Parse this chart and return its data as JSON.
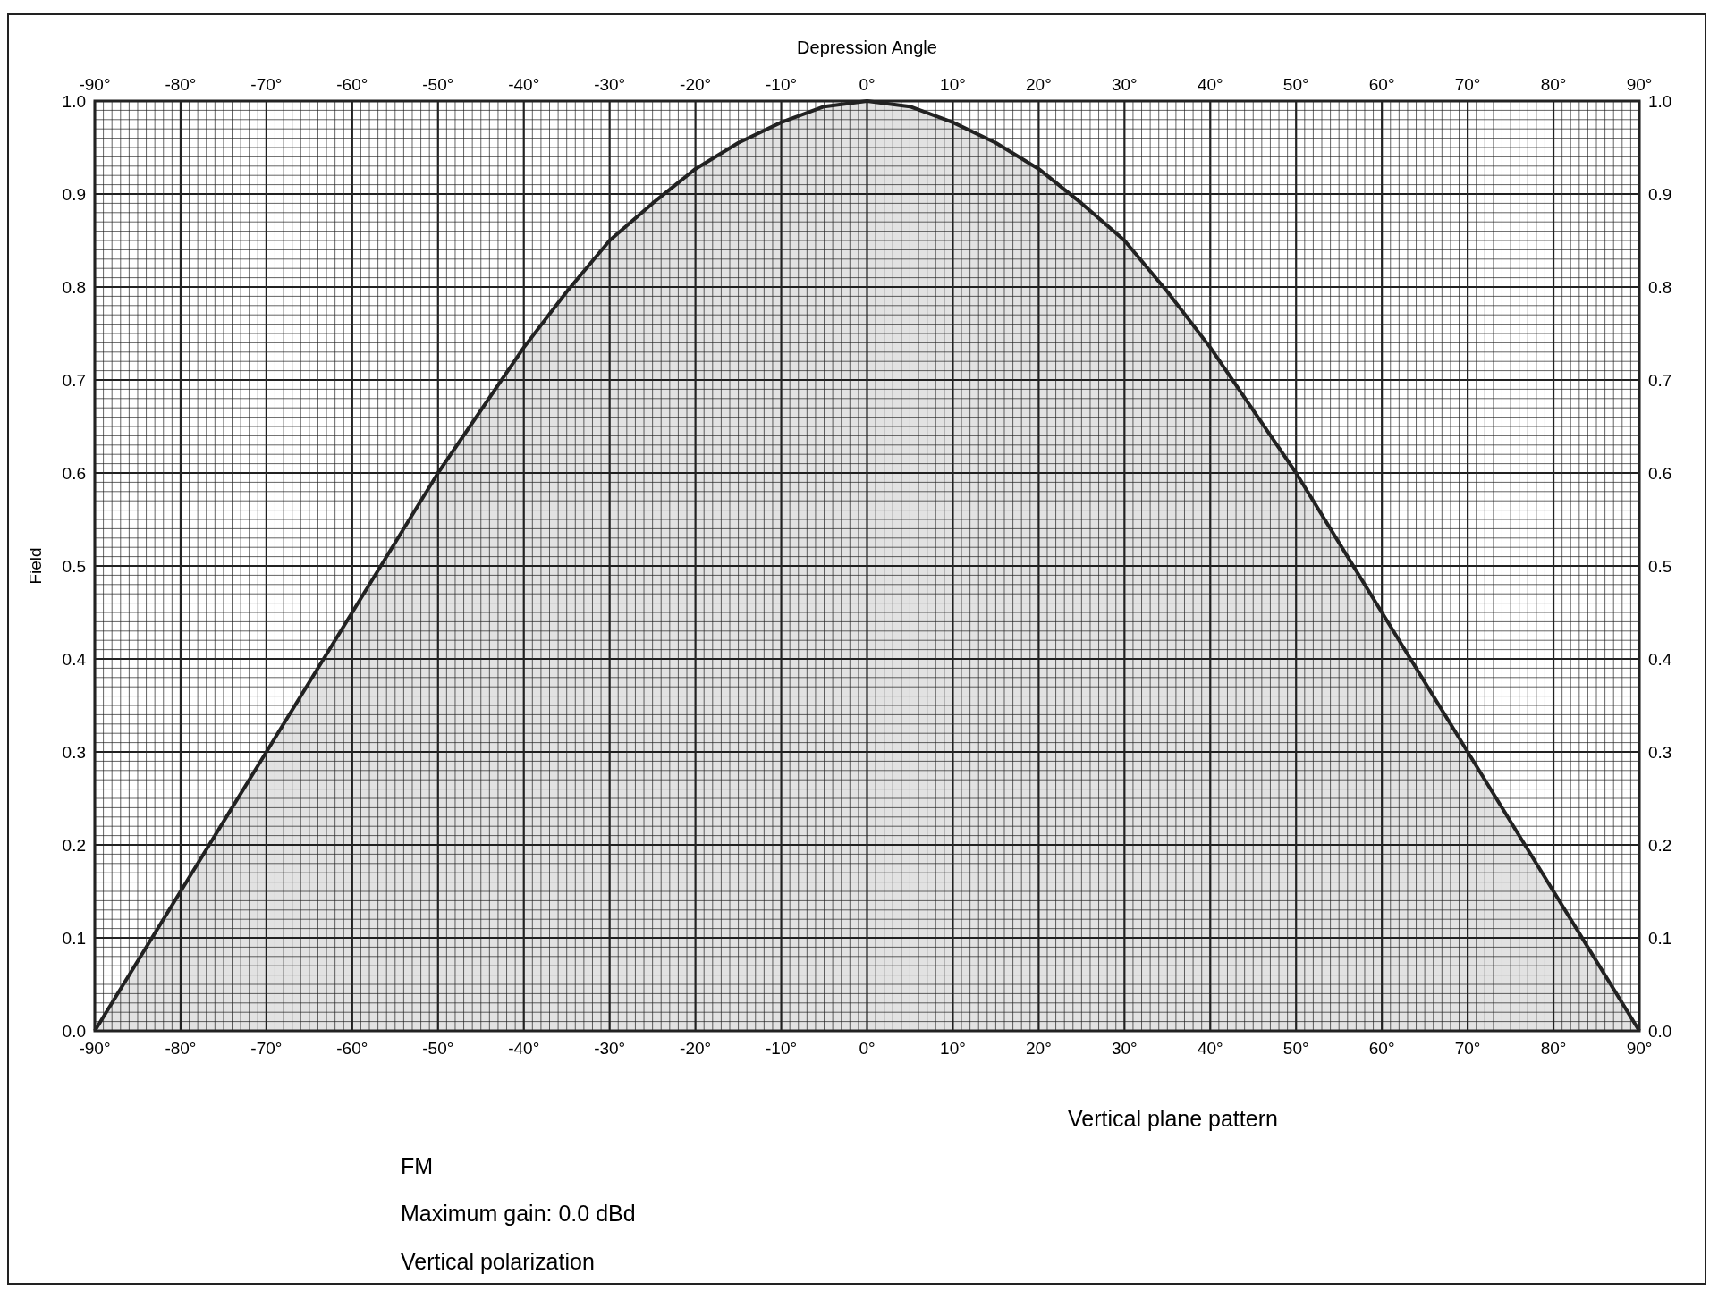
{
  "chart_data": {
    "type": "area",
    "x2label": "Depression Angle",
    "ylabel": "Field",
    "x": [
      -90,
      -80,
      -70,
      -60,
      -50,
      -40,
      -35,
      -30,
      -25,
      -20,
      -15,
      -10,
      -5,
      0,
      5,
      10,
      15,
      20,
      25,
      30,
      35,
      40,
      50,
      60,
      70,
      80,
      90
    ],
    "series": [
      {
        "color": "#222222",
        "values": [
          0,
          0.15,
          0.3,
          0.45,
          0.6,
          0.735,
          0.795,
          0.85,
          0.89,
          0.927,
          0.955,
          0.977,
          0.994,
          1.0,
          0.994,
          0.977,
          0.955,
          0.927,
          0.89,
          0.85,
          0.795,
          0.735,
          0.6,
          0.45,
          0.3,
          0.15,
          0
        ]
      }
    ],
    "xlim": [
      -90,
      90
    ],
    "xticks": [
      {
        "value": -90,
        "label": "-90°"
      },
      {
        "value": -80,
        "label": "-80°"
      },
      {
        "value": -70,
        "label": "-70°"
      },
      {
        "value": -60,
        "label": "-60°"
      },
      {
        "value": -50,
        "label": "-50°"
      },
      {
        "value": -40,
        "label": "-40°"
      },
      {
        "value": -30,
        "label": "-30°"
      },
      {
        "value": -20,
        "label": "-20°"
      },
      {
        "value": -10,
        "label": "-10°"
      },
      {
        "value": 0,
        "label": "0°"
      },
      {
        "value": 10,
        "label": "10°"
      },
      {
        "value": 20,
        "label": "20°"
      },
      {
        "value": 30,
        "label": "30°"
      },
      {
        "value": 40,
        "label": "40°"
      },
      {
        "value": 50,
        "label": "50°"
      },
      {
        "value": 60,
        "label": "60°"
      },
      {
        "value": 70,
        "label": "70°"
      },
      {
        "value": 80,
        "label": "80°"
      },
      {
        "value": 90,
        "label": "90°"
      }
    ],
    "x2lim": [
      -90,
      90
    ],
    "x2ticks": [
      {
        "value": -90,
        "label": "-90°"
      },
      {
        "value": -80,
        "label": "-80°"
      },
      {
        "value": -70,
        "label": "-70°"
      },
      {
        "value": -60,
        "label": "-60°"
      },
      {
        "value": -50,
        "label": "-50°"
      },
      {
        "value": -40,
        "label": "-40°"
      },
      {
        "value": -30,
        "label": "-30°"
      },
      {
        "value": -20,
        "label": "-20°"
      },
      {
        "value": -10,
        "label": "-10°"
      },
      {
        "value": 0,
        "label": "0°"
      },
      {
        "value": 10,
        "label": "10°"
      },
      {
        "value": 20,
        "label": "20°"
      },
      {
        "value": 30,
        "label": "30°"
      },
      {
        "value": 40,
        "label": "40°"
      },
      {
        "value": 50,
        "label": "50°"
      },
      {
        "value": 60,
        "label": "60°"
      },
      {
        "value": 70,
        "label": "70°"
      },
      {
        "value": 80,
        "label": "80°"
      },
      {
        "value": 90,
        "label": "90°"
      }
    ],
    "ylim": [
      0,
      1
    ],
    "yticks": [
      {
        "value": 0,
        "label": "0.0"
      },
      0.1,
      0.2,
      0.3,
      0.4,
      0.5,
      0.6,
      0.7,
      0.8,
      0.9,
      {
        "value": 1,
        "label": "1.0"
      }
    ],
    "y2lim": [
      0,
      1
    ],
    "y2ticks": [
      {
        "value": 0,
        "label": "0.0"
      },
      0.1,
      0.2,
      0.3,
      0.4,
      0.5,
      0.6,
      0.7,
      0.8,
      0.9,
      {
        "value": 1,
        "label": "1.0"
      }
    ],
    "grid": true,
    "annotations": [
      "Vertical plane pattern",
      "FM",
      "Maximum gain: 0.0 dBd",
      "Vertical polarization"
    ]
  }
}
